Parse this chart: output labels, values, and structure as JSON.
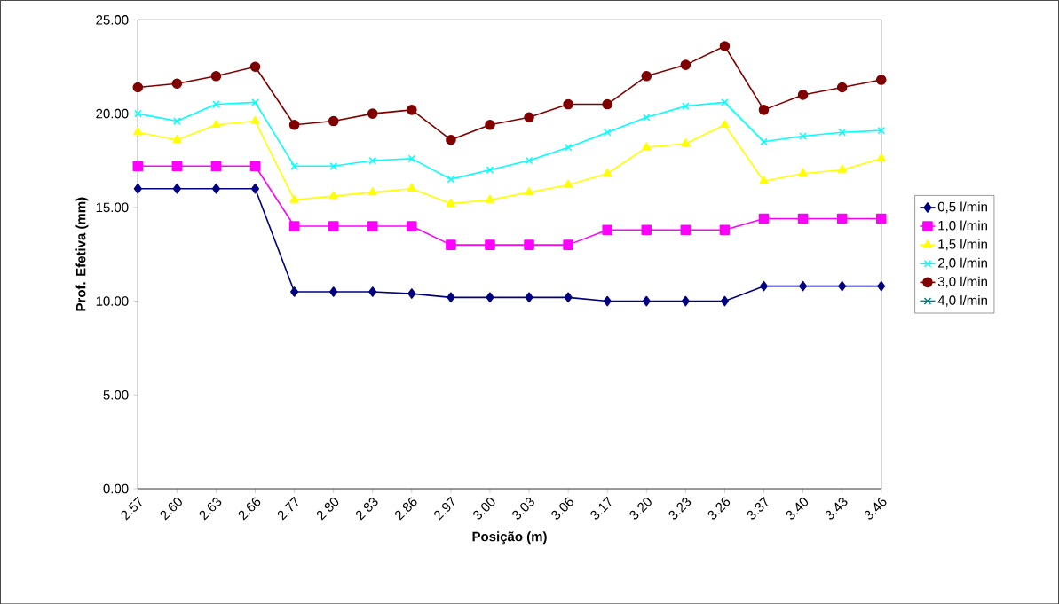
{
  "chart_data": {
    "type": "line",
    "xlabel": "Posição (m)",
    "ylabel": "Prof. Efetiva (mm)",
    "categories": [
      "2.57",
      "2.60",
      "2.63",
      "2.66",
      "2.77",
      "2.80",
      "2.83",
      "2.86",
      "2.97",
      "3.00",
      "3.03",
      "3.06",
      "3.17",
      "3.20",
      "3.23",
      "3.26",
      "3.37",
      "3.40",
      "3.43",
      "3.46"
    ],
    "ylim": [
      0,
      25
    ],
    "yticks": [
      {
        "value": 0,
        "label": "0.00"
      },
      {
        "value": 5,
        "label": "5.00"
      },
      {
        "value": 10,
        "label": "10.00"
      },
      {
        "value": 15,
        "label": "15.00"
      },
      {
        "value": 20,
        "label": "20.00"
      },
      {
        "value": 25,
        "label": "25.00"
      }
    ],
    "legend": "right",
    "grid": false,
    "series": [
      {
        "name": "0,5 l/min",
        "color": "#000080",
        "marker": "diamond",
        "values": [
          16,
          16,
          16,
          16,
          10.5,
          10.5,
          10.5,
          10.4,
          10.2,
          10.2,
          10.2,
          10.2,
          10.0,
          10.0,
          10.0,
          10.0,
          10.8,
          10.8,
          10.8,
          10.8
        ]
      },
      {
        "name": "1,0 l/min",
        "color": "#ff00ff",
        "marker": "square",
        "values": [
          17.2,
          17.2,
          17.2,
          17.2,
          14,
          14,
          14,
          14,
          13,
          13,
          13,
          13,
          13.8,
          13.8,
          13.8,
          13.8,
          14.4,
          14.4,
          14.4,
          14.4
        ]
      },
      {
        "name": "1,5 l/min",
        "color": "#ffff00",
        "marker": "triangle",
        "values": [
          19.0,
          18.6,
          19.4,
          19.6,
          15.4,
          15.6,
          15.8,
          16.0,
          15.2,
          15.4,
          15.8,
          16.2,
          16.8,
          18.2,
          18.4,
          19.4,
          16.4,
          16.8,
          17.0,
          17.6
        ]
      },
      {
        "name": "2,0 l/min",
        "color": "#00ffff",
        "marker": "cross",
        "values": [
          20.0,
          19.6,
          20.5,
          20.6,
          17.2,
          17.2,
          17.5,
          17.6,
          16.5,
          17.0,
          17.5,
          18.2,
          19.0,
          19.8,
          20.4,
          20.6,
          18.5,
          18.8,
          19.0,
          19.1
        ]
      },
      {
        "name": "3,0 l/min",
        "color": "#800000",
        "marker": "circle",
        "values": [
          21.4,
          21.6,
          22.0,
          22.5,
          19.4,
          19.6,
          20.0,
          20.2,
          18.6,
          19.4,
          19.8,
          20.5,
          20.5,
          22.0,
          22.6,
          23.6,
          20.2,
          21.0,
          21.4,
          21.8
        ]
      },
      {
        "name": "4,0 l/min",
        "color": "#008080",
        "marker": "cross",
        "values": [
          null,
          null,
          null,
          null,
          null,
          null,
          null,
          null,
          null,
          null,
          null,
          null,
          null,
          null,
          null,
          null,
          null,
          null,
          null,
          null
        ]
      }
    ]
  }
}
